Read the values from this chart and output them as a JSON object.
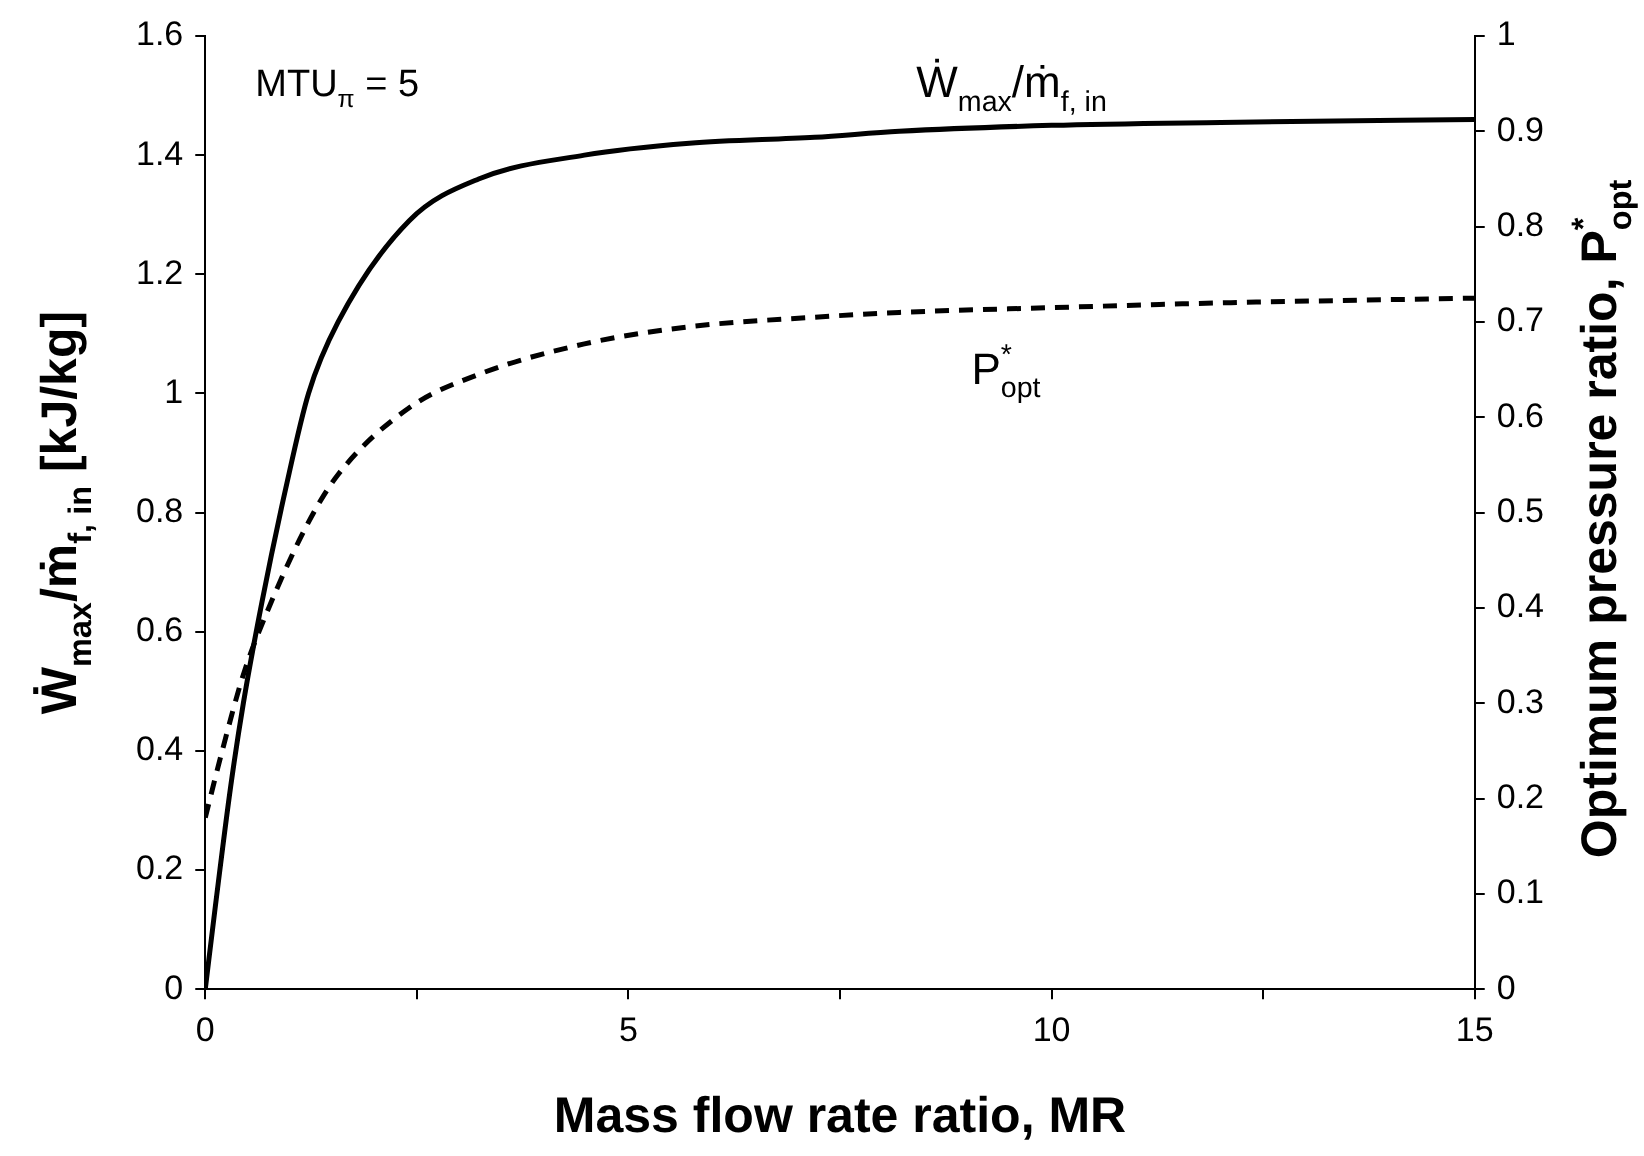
{
  "chart_data": {
    "type": "line",
    "xlabel": "Mass flow rate ratio, MR",
    "ylabel": "Ẇ$_{max}$/ṁ$_{f, in}$ [kJ/kg]",
    "y2label": "Optimum pressure ratio, P$^{*}$$_{opt}$",
    "annotations": [
      "MTU$_{π}$ = 5"
    ],
    "xlim": [
      0,
      15
    ],
    "xticks": [
      0,
      {
        "value": 2.5,
        "label": null
      },
      5,
      {
        "value": 7.5,
        "label": null
      },
      10,
      {
        "value": 12.5,
        "label": null
      },
      15
    ],
    "ylim": [
      0,
      1.6
    ],
    "yticks": [
      0,
      0.2,
      0.4,
      0.6,
      0.8,
      1,
      1.2,
      1.4,
      1.6
    ],
    "y2lim": [
      0,
      1
    ],
    "y2ticks": [
      0,
      0.1,
      0.2,
      0.3,
      0.4,
      0.5,
      0.6,
      0.7,
      0.8,
      0.9,
      1
    ],
    "legend": false,
    "grid": false,
    "marker": "none",
    "series": [
      {
        "name": "Ẇ$_{max}$/ṁ$_{f, in}$",
        "color": "#000000",
        "line_style": "solid",
        "x": [
          0,
          0.12,
          0.3,
          0.45,
          0.67,
          0.95,
          1.22,
          1.57,
          2.41,
          3.23,
          4.48,
          5.72,
          7.2,
          8.2,
          10,
          12,
          15
        ],
        "values": [
          0,
          0.14,
          0.34,
          0.48,
          0.65,
          0.84,
          1.0,
          1.12,
          1.29,
          1.36,
          1.4,
          1.42,
          1.43,
          1.44,
          1.45,
          1.455,
          1.46
        ]
      },
      {
        "name": "P$^{*}$$_{opt}$",
        "color": "#000000",
        "line_style": "dashed",
        "axis": "y2",
        "x": [
          0,
          0.2,
          0.45,
          0.75,
          1.22,
          1.57,
          2.41,
          3.23,
          4.48,
          5.72,
          7.2,
          8.2,
          10,
          12,
          15
        ],
        "values": [
          0.18,
          0.25,
          0.33,
          0.4,
          0.49,
          0.54,
          0.61,
          0.645,
          0.677,
          0.695,
          0.705,
          0.71,
          0.715,
          0.72,
          0.725
        ]
      }
    ]
  }
}
